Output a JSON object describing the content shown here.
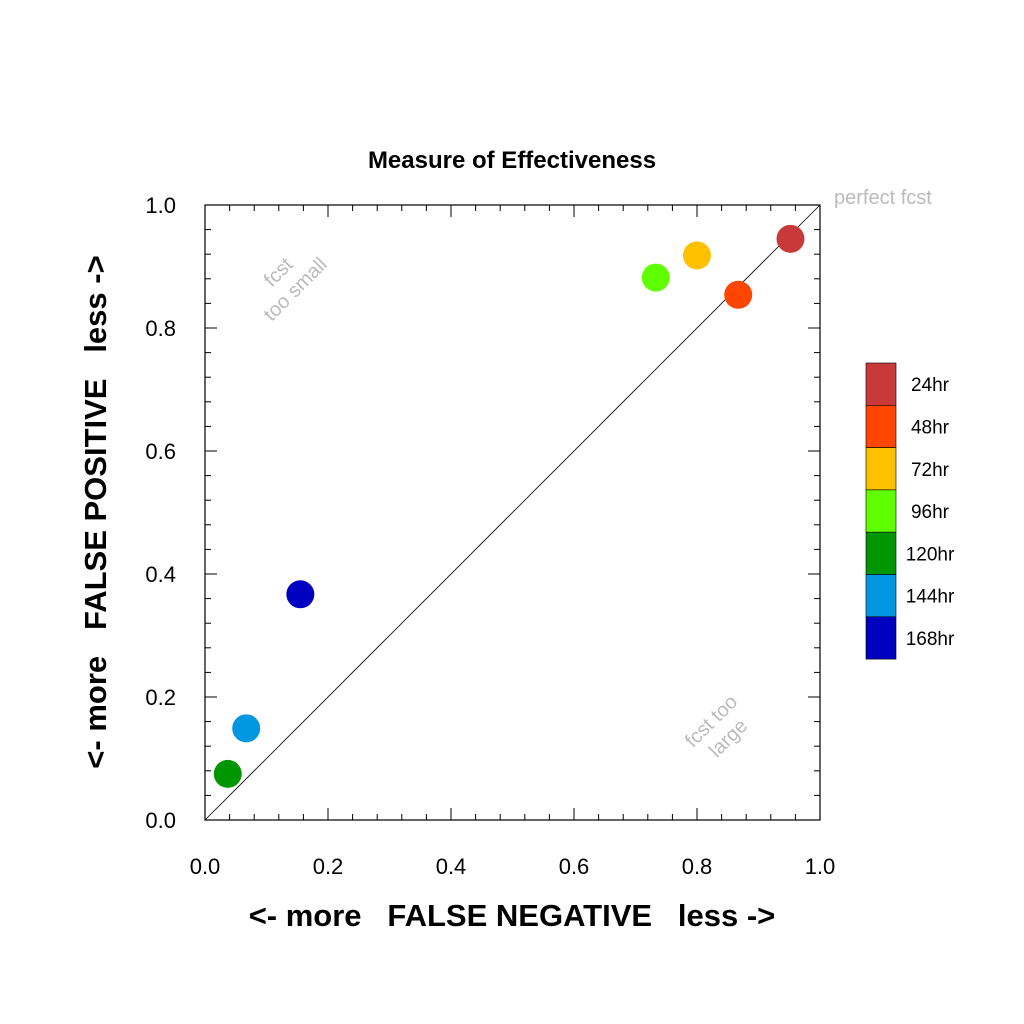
{
  "chart_data": {
    "type": "scatter",
    "title": "Measure of Effectiveness",
    "xlabel": "<- more   FALSE NEGATIVE   less ->",
    "ylabel": "<- more   FALSE POSITIVE   less ->",
    "xlim": [
      0.0,
      1.0
    ],
    "ylim": [
      0.0,
      1.0
    ],
    "xticks": [
      "0.0",
      "0.2",
      "0.4",
      "0.6",
      "0.8",
      "1.0"
    ],
    "yticks": [
      "0.0",
      "0.2",
      "0.4",
      "0.6",
      "0.8",
      "1.0"
    ],
    "grid": false,
    "legend_position": "right",
    "reference_line": "diagonal",
    "annotations": {
      "perfect": "perfect fcst",
      "too_small_1": "fcst",
      "too_small_2": "too small",
      "too_large_1": "fcst too",
      "too_large_2": "large"
    },
    "series": [
      {
        "name": "168hr",
        "color": "#0000c0",
        "x": 0.155,
        "y": 0.367
      },
      {
        "name": "144hr",
        "color": "#0096e0",
        "x": 0.067,
        "y": 0.149
      },
      {
        "name": "120hr",
        "color": "#009600",
        "x": 0.037,
        "y": 0.075
      },
      {
        "name": "96hr",
        "color": "#60ff00",
        "x": 0.733,
        "y": 0.882
      },
      {
        "name": "72hr",
        "color": "#ffc000",
        "x": 0.8,
        "y": 0.918
      },
      {
        "name": "48hr",
        "color": "#ff4500",
        "x": 0.867,
        "y": 0.854
      },
      {
        "name": "24hr",
        "color": "#c83a3a",
        "x": 0.952,
        "y": 0.945
      }
    ]
  }
}
